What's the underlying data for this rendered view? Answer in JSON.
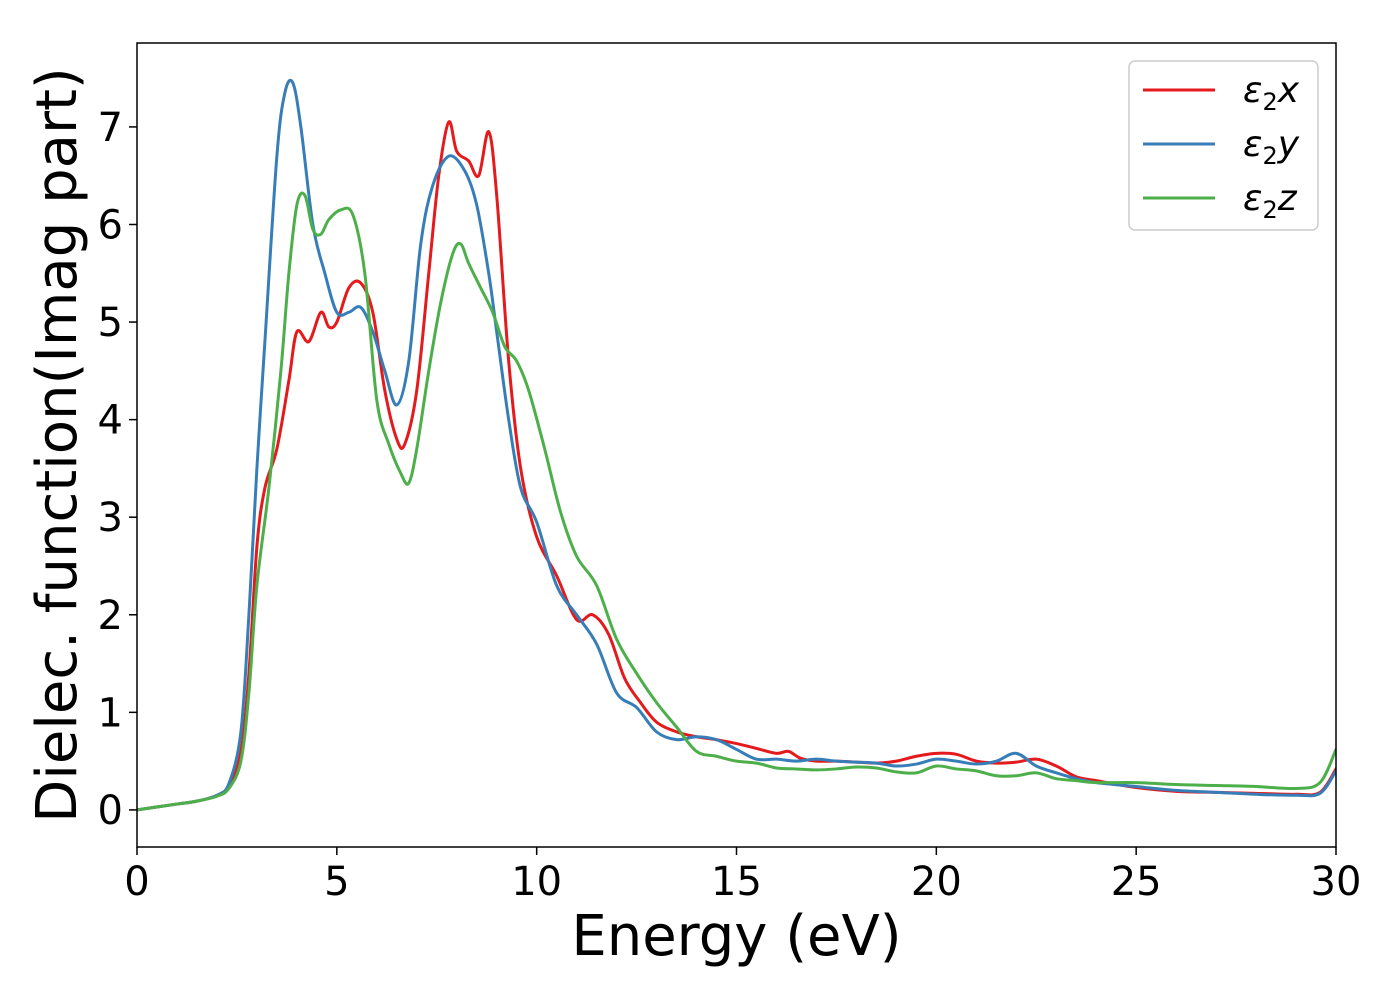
{
  "chart_data": {
    "type": "line",
    "xlabel": "Energy (eV)",
    "ylabel": "Dielec. function(Imag part)",
    "xlim": [
      0,
      30
    ],
    "ylim": [
      -0.38,
      7.86
    ],
    "xticks": [
      "0",
      "5",
      "10",
      "15",
      "20",
      "25",
      "30"
    ],
    "yticks": [
      "0",
      "1",
      "2",
      "3",
      "4",
      "5",
      "6",
      "7"
    ],
    "grid": false,
    "legend_position": "top-right",
    "series": [
      {
        "name": "ε2x",
        "label_base": "ε",
        "label_sub": "2",
        "label_tail": "x",
        "color": "#e41a1c",
        "x": [
          0,
          1,
          1.5,
          2,
          2.3,
          2.6,
          2.8,
          3.0,
          3.2,
          3.5,
          3.8,
          4.0,
          4.3,
          4.6,
          4.8,
          5.0,
          5.3,
          5.6,
          5.9,
          6.2,
          6.5,
          6.7,
          7.0,
          7.3,
          7.55,
          7.8,
          8.0,
          8.3,
          8.55,
          8.8,
          9.0,
          9.3,
          9.6,
          10.0,
          10.5,
          11.0,
          11.4,
          11.8,
          12.2,
          12.6,
          13.0,
          13.5,
          14.0,
          14.5,
          15.0,
          15.5,
          16.0,
          16.3,
          16.6,
          17.0,
          17.5,
          18.0,
          18.5,
          19.0,
          19.5,
          20.0,
          20.5,
          21.0,
          21.5,
          22.0,
          22.5,
          23.0,
          23.5,
          24.0,
          25.0,
          26.0,
          27.0,
          28.0,
          29.0,
          29.6,
          30.0
        ],
        "y": [
          0,
          0.06,
          0.09,
          0.15,
          0.25,
          0.6,
          1.4,
          2.7,
          3.3,
          3.7,
          4.4,
          4.9,
          4.8,
          5.1,
          4.95,
          5.0,
          5.35,
          5.4,
          5.1,
          4.3,
          3.8,
          3.75,
          4.3,
          5.5,
          6.5,
          7.05,
          6.75,
          6.65,
          6.5,
          6.95,
          6.3,
          4.6,
          3.5,
          2.8,
          2.4,
          1.95,
          2.0,
          1.8,
          1.35,
          1.1,
          0.9,
          0.8,
          0.75,
          0.72,
          0.68,
          0.63,
          0.58,
          0.6,
          0.53,
          0.5,
          0.5,
          0.49,
          0.48,
          0.5,
          0.55,
          0.58,
          0.57,
          0.5,
          0.48,
          0.49,
          0.52,
          0.45,
          0.34,
          0.3,
          0.23,
          0.19,
          0.18,
          0.17,
          0.16,
          0.18,
          0.42
        ]
      },
      {
        "name": "ε2y",
        "label_base": "ε",
        "label_sub": "2",
        "label_tail": "y",
        "color": "#377eb8",
        "x": [
          0,
          1,
          1.5,
          2,
          2.3,
          2.6,
          2.8,
          3.0,
          3.2,
          3.5,
          3.7,
          3.9,
          4.1,
          4.4,
          4.7,
          5.0,
          5.3,
          5.6,
          5.9,
          6.2,
          6.5,
          6.8,
          7.1,
          7.4,
          7.8,
          8.2,
          8.5,
          8.8,
          9.0,
          9.3,
          9.6,
          10.0,
          10.5,
          11.0,
          11.5,
          12.0,
          12.5,
          13.0,
          13.5,
          14.0,
          14.5,
          15.0,
          15.5,
          16.0,
          16.5,
          17.0,
          17.5,
          18.0,
          18.5,
          19.0,
          19.5,
          20.0,
          20.5,
          21.0,
          21.5,
          22.0,
          22.5,
          23.0,
          23.5,
          24.0,
          25.0,
          26.0,
          27.0,
          28.0,
          29.0,
          29.6,
          30.0
        ],
        "y": [
          0,
          0.06,
          0.09,
          0.15,
          0.27,
          0.8,
          2.0,
          3.5,
          4.8,
          6.7,
          7.35,
          7.45,
          7.0,
          6.0,
          5.5,
          5.1,
          5.1,
          5.15,
          4.9,
          4.5,
          4.15,
          4.6,
          5.8,
          6.4,
          6.7,
          6.55,
          6.2,
          5.5,
          4.9,
          4.0,
          3.3,
          2.95,
          2.3,
          2.0,
          1.7,
          1.2,
          1.05,
          0.8,
          0.72,
          0.75,
          0.72,
          0.62,
          0.52,
          0.52,
          0.5,
          0.52,
          0.5,
          0.49,
          0.48,
          0.45,
          0.47,
          0.52,
          0.5,
          0.47,
          0.5,
          0.58,
          0.45,
          0.38,
          0.32,
          0.28,
          0.24,
          0.2,
          0.18,
          0.16,
          0.15,
          0.17,
          0.4
        ]
      },
      {
        "name": "ε2z",
        "label_base": "ε",
        "label_sub": "2",
        "label_tail": "z",
        "color": "#4daf4a",
        "x": [
          0,
          1,
          1.5,
          2,
          2.3,
          2.6,
          2.8,
          3.0,
          3.3,
          3.6,
          3.8,
          4.0,
          4.2,
          4.4,
          4.6,
          4.8,
          5.1,
          5.4,
          5.7,
          6.0,
          6.3,
          6.6,
          6.8,
          7.0,
          7.3,
          7.6,
          7.9,
          8.1,
          8.3,
          8.6,
          8.9,
          9.2,
          9.5,
          9.8,
          10.2,
          10.6,
          11.0,
          11.5,
          12.0,
          12.5,
          13.0,
          13.5,
          14.0,
          14.5,
          15.0,
          15.5,
          16.0,
          16.5,
          17.0,
          17.5,
          18.0,
          18.5,
          19.0,
          19.5,
          20.0,
          20.5,
          21.0,
          21.5,
          22.0,
          22.5,
          23.0,
          23.5,
          24.0,
          25.0,
          26.0,
          27.0,
          28.0,
          29.0,
          29.6,
          30.0
        ],
        "y": [
          0,
          0.06,
          0.09,
          0.14,
          0.22,
          0.5,
          1.2,
          2.3,
          3.3,
          4.5,
          5.5,
          6.2,
          6.3,
          5.95,
          5.9,
          6.05,
          6.15,
          6.1,
          5.5,
          4.2,
          3.75,
          3.45,
          3.35,
          3.7,
          4.5,
          5.2,
          5.7,
          5.8,
          5.6,
          5.35,
          5.1,
          4.75,
          4.6,
          4.3,
          3.7,
          3.05,
          2.6,
          2.3,
          1.75,
          1.4,
          1.1,
          0.85,
          0.6,
          0.55,
          0.5,
          0.48,
          0.43,
          0.42,
          0.41,
          0.42,
          0.44,
          0.43,
          0.39,
          0.38,
          0.45,
          0.42,
          0.4,
          0.35,
          0.35,
          0.38,
          0.32,
          0.3,
          0.28,
          0.28,
          0.26,
          0.25,
          0.24,
          0.22,
          0.28,
          0.62
        ]
      }
    ]
  }
}
